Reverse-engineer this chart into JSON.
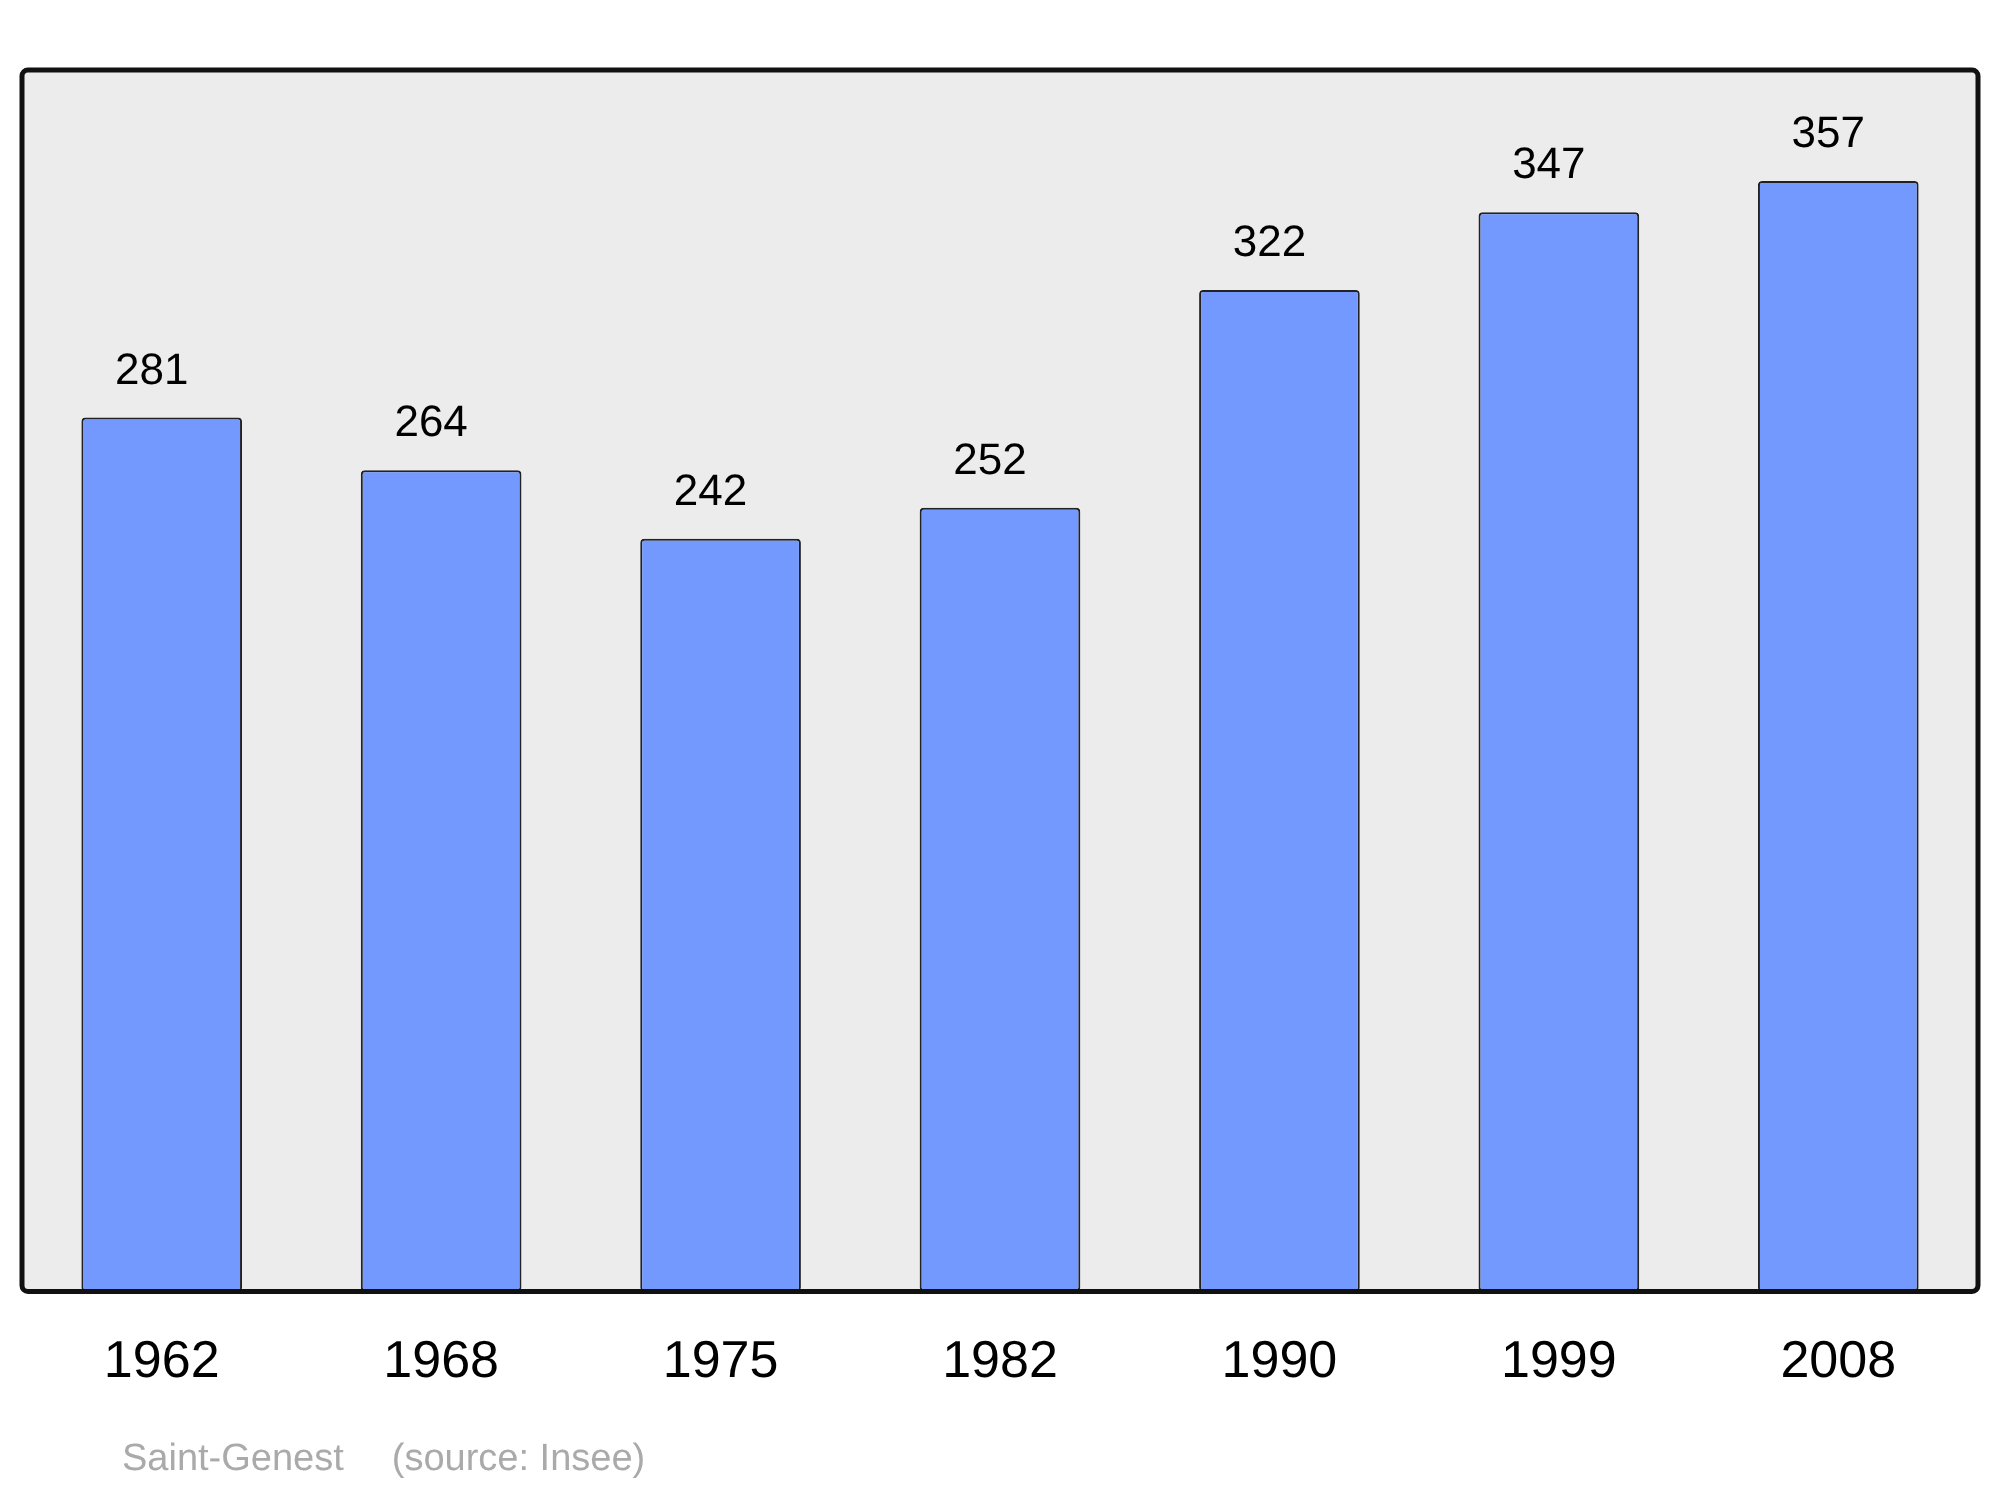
{
  "chart_data": {
    "type": "bar",
    "categories": [
      "1962",
      "1968",
      "1975",
      "1982",
      "1990",
      "1999",
      "2008"
    ],
    "values": [
      281,
      264,
      242,
      252,
      322,
      347,
      357
    ],
    "color": "#7399ff",
    "data_labels": true,
    "grid": false,
    "legend": false,
    "tick_labels": "x",
    "annotations": [
      "Saint-Genest",
      "(source: Insee)"
    ]
  }
}
